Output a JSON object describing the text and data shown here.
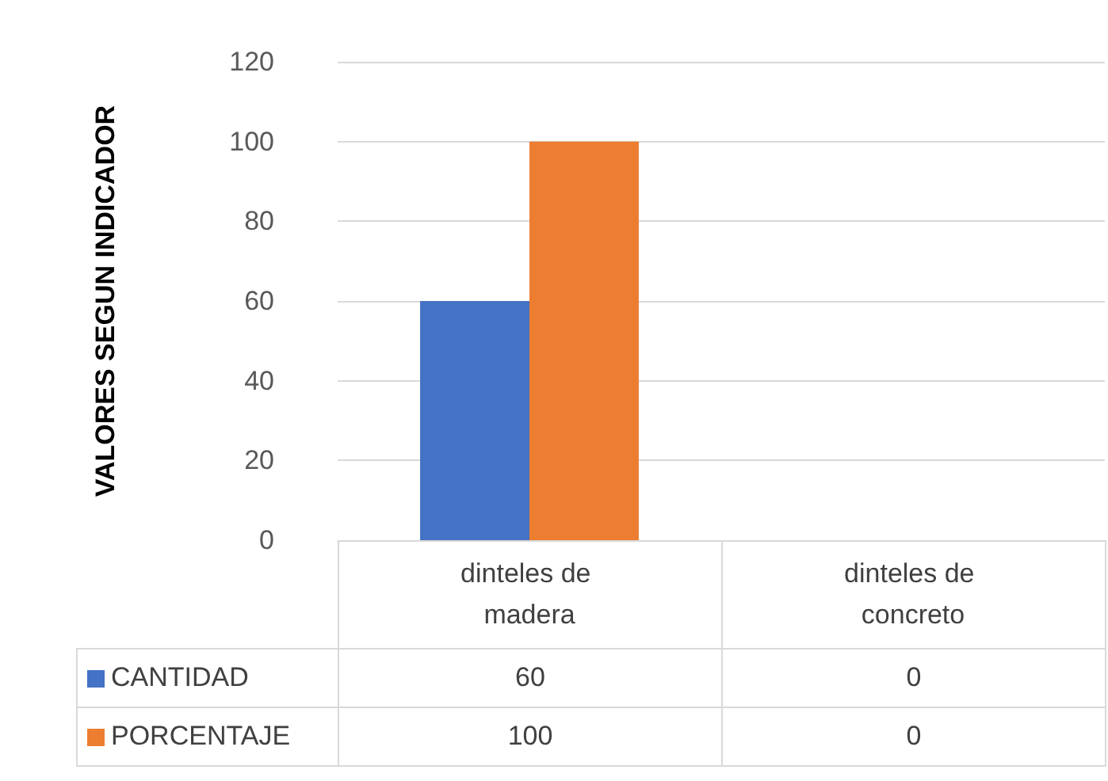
{
  "chart_data": {
    "type": "bar",
    "ylabel": "VALORES SEGUN INDICADOR",
    "categories": [
      "dinteles de madera",
      "dinteles de concreto"
    ],
    "series": [
      {
        "name": "CANTIDAD",
        "color": "#4472c4",
        "values": [
          60,
          0
        ]
      },
      {
        "name": "PORCENTAJE",
        "color": "#ed7d31",
        "values": [
          100,
          0
        ]
      }
    ],
    "ylim": [
      0,
      120
    ],
    "yticks": [
      0,
      20,
      40,
      60,
      80,
      100,
      120
    ],
    "grid": "y",
    "legend": "bottom",
    "data_labels": true
  }
}
